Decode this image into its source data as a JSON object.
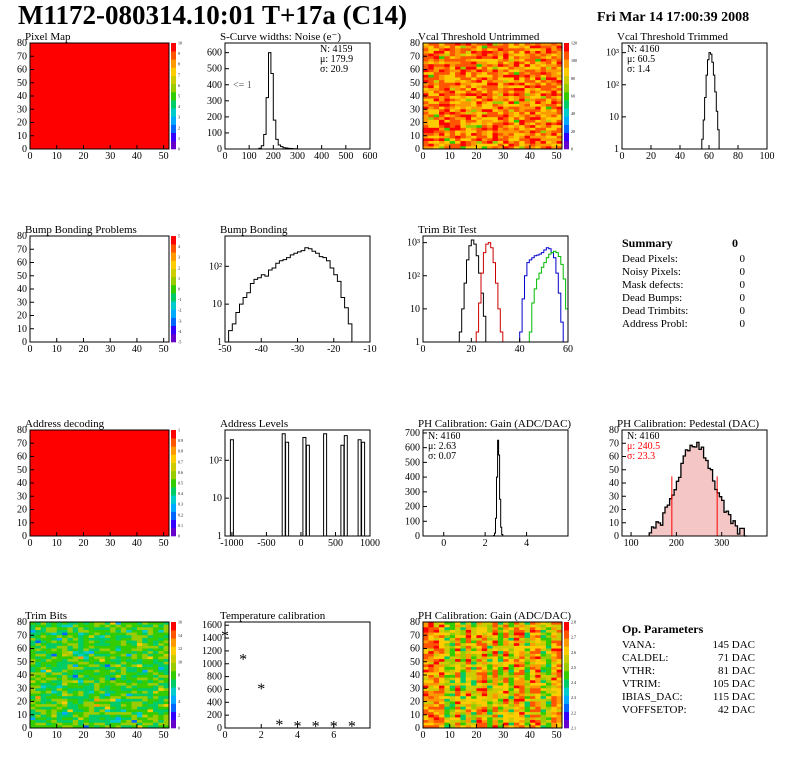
{
  "header": {
    "title": "M1172-080314.10:01 T+17a (C14)",
    "date": "Fri Mar 14 17:00:39 2008"
  },
  "chart_data": [
    {
      "id": "pixel-map",
      "type": "heatmap",
      "title": "Pixel Map",
      "xlim": [
        0,
        52
      ],
      "ylim": [
        0,
        80
      ],
      "xticks": [
        "0",
        "10",
        "20",
        "30",
        "40",
        "50"
      ],
      "yticks": [
        "0",
        "10",
        "20",
        "30",
        "40",
        "50",
        "60",
        "70",
        "80"
      ],
      "fill": "uniform-max",
      "fill_color": "#ff0000",
      "zticks": [
        "0",
        "1",
        "2",
        "3",
        "4",
        "5",
        "6",
        "7",
        "8",
        "9",
        "10"
      ]
    },
    {
      "id": "s-curve-widths",
      "type": "histogram",
      "title": "S-Curve widths: Noise (e⁻)",
      "xlim": [
        0,
        600
      ],
      "ylim": [
        0,
        660
      ],
      "xticks": [
        "0",
        "100",
        "200",
        "300",
        "400",
        "500",
        "600"
      ],
      "yticks": [
        "0",
        "100",
        "200",
        "300",
        "400",
        "500",
        "600"
      ],
      "bins": [
        [
          140,
          5
        ],
        [
          150,
          20
        ],
        [
          160,
          90
        ],
        [
          170,
          320
        ],
        [
          180,
          600
        ],
        [
          190,
          470
        ],
        [
          200,
          180
        ],
        [
          210,
          60
        ],
        [
          220,
          25
        ],
        [
          230,
          15
        ],
        [
          240,
          8
        ],
        [
          250,
          6
        ],
        [
          260,
          4
        ],
        [
          270,
          3
        ],
        [
          280,
          2
        ],
        [
          290,
          1
        ]
      ],
      "stats": {
        "N": "4159",
        "mu": "179.9",
        "sigma": "20.9"
      },
      "annotation": "<= 1"
    },
    {
      "id": "vcal-untrimmed",
      "type": "heatmap",
      "title": "Vcal Threshold Untrimmed",
      "xlim": [
        0,
        52
      ],
      "ylim": [
        0,
        80
      ],
      "xticks": [
        "0",
        "10",
        "20",
        "30",
        "40",
        "50"
      ],
      "yticks": [
        "0",
        "10",
        "20",
        "30",
        "40",
        "50",
        "60",
        "70",
        "80"
      ],
      "fill": "noisy-warm",
      "zticks": [
        "0",
        "20",
        "40",
        "60",
        "80",
        "100",
        "120"
      ]
    },
    {
      "id": "vcal-trimmed",
      "type": "histogram",
      "title": "Vcal Threshold Trimmed",
      "log": true,
      "xlim": [
        0,
        100
      ],
      "ylim_log": [
        0,
        3.3
      ],
      "xticks": [
        "0",
        "20",
        "40",
        "60",
        "80",
        "100"
      ],
      "yticks": [
        "1",
        "10",
        "10²",
        "10³"
      ],
      "bins": [
        [
          55,
          2
        ],
        [
          56,
          8
        ],
        [
          57,
          40
        ],
        [
          58,
          200
        ],
        [
          59,
          600
        ],
        [
          60,
          1000
        ],
        [
          61,
          900
        ],
        [
          62,
          500
        ],
        [
          63,
          200
        ],
        [
          64,
          60
        ],
        [
          65,
          15
        ],
        [
          66,
          4
        ]
      ],
      "stats": {
        "N": "4160",
        "mu": "60.5",
        "sigma": "1.4"
      }
    },
    {
      "id": "bump-problems",
      "type": "heatmap",
      "title": "Bump Bonding Problems",
      "xlim": [
        0,
        52
      ],
      "ylim": [
        0,
        80
      ],
      "xticks": [
        "0",
        "10",
        "20",
        "30",
        "40",
        "50"
      ],
      "yticks": [
        "0",
        "10",
        "20",
        "30",
        "40",
        "50",
        "60",
        "70",
        "80"
      ],
      "fill": "empty",
      "zticks": [
        "-5",
        "-4",
        "-3",
        "-2",
        "-1",
        "0",
        "1",
        "2",
        "3",
        "4",
        "5"
      ]
    },
    {
      "id": "bump-bonding",
      "type": "histogram",
      "title": "Bump Bonding",
      "log": true,
      "xlim": [
        -50,
        -10
      ],
      "ylim_log": [
        0,
        2.8
      ],
      "xticks": [
        "-50",
        "-40",
        "-30",
        "-20",
        "-10"
      ],
      "yticks": [
        "1",
        "10",
        "10²"
      ],
      "bins": [
        [
          -50,
          1
        ],
        [
          -49,
          2
        ],
        [
          -48,
          3
        ],
        [
          -47,
          6
        ],
        [
          -46,
          10
        ],
        [
          -45,
          15
        ],
        [
          -44,
          20
        ],
        [
          -43,
          35
        ],
        [
          -42,
          45
        ],
        [
          -41,
          50
        ],
        [
          -40,
          60
        ],
        [
          -39,
          55
        ],
        [
          -38,
          80
        ],
        [
          -37,
          90
        ],
        [
          -36,
          120
        ],
        [
          -35,
          140
        ],
        [
          -34,
          150
        ],
        [
          -33,
          170
        ],
        [
          -32,
          200
        ],
        [
          -31,
          220
        ],
        [
          -30,
          240
        ],
        [
          -29,
          260
        ],
        [
          -28,
          310
        ],
        [
          -27,
          290
        ],
        [
          -26,
          250
        ],
        [
          -25,
          220
        ],
        [
          -24,
          180
        ],
        [
          -23,
          170
        ],
        [
          -22,
          140
        ],
        [
          -21,
          90
        ],
        [
          -20,
          60
        ],
        [
          -19,
          40
        ],
        [
          -18,
          15
        ],
        [
          -17,
          8
        ],
        [
          -16,
          3
        ],
        [
          -15,
          1
        ]
      ]
    },
    {
      "id": "trim-bit-test",
      "type": "histogram",
      "title": "Trim Bit Test",
      "log": true,
      "xlim": [
        0,
        60
      ],
      "ylim_log": [
        0,
        3.2
      ],
      "xticks": [
        "0",
        "20",
        "40",
        "60"
      ],
      "yticks": [
        "1",
        "10",
        "10²",
        "10³"
      ],
      "series": [
        {
          "color": "#000000",
          "bins": [
            [
              15,
              2
            ],
            [
              16,
              10
            ],
            [
              17,
              60
            ],
            [
              18,
              300
            ],
            [
              19,
              800
            ],
            [
              20,
              1200
            ],
            [
              21,
              900
            ],
            [
              22,
              400
            ],
            [
              23,
              120
            ],
            [
              24,
              30
            ],
            [
              25,
              6
            ]
          ]
        },
        {
          "color": "#cc0000",
          "bins": [
            [
              22,
              2
            ],
            [
              23,
              15
            ],
            [
              24,
              120
            ],
            [
              25,
              500
            ],
            [
              26,
              900
            ],
            [
              27,
              1000
            ],
            [
              28,
              700
            ],
            [
              29,
              250
            ],
            [
              30,
              60
            ],
            [
              31,
              10
            ],
            [
              32,
              2
            ]
          ]
        },
        {
          "color": "#0000cc",
          "bins": [
            [
              40,
              2
            ],
            [
              41,
              20
            ],
            [
              42,
              100
            ],
            [
              43,
              250
            ],
            [
              44,
              300
            ],
            [
              45,
              350
            ],
            [
              46,
              400
            ],
            [
              47,
              420
            ],
            [
              48,
              450
            ],
            [
              49,
              500
            ],
            [
              50,
              600
            ],
            [
              51,
              700
            ],
            [
              52,
              650
            ],
            [
              53,
              500
            ],
            [
              54,
              350
            ],
            [
              55,
              120
            ],
            [
              56,
              30
            ],
            [
              57,
              4
            ]
          ]
        },
        {
          "color": "#00bb00",
          "bins": [
            [
              44,
              2
            ],
            [
              45,
              15
            ],
            [
              46,
              40
            ],
            [
              47,
              80
            ],
            [
              48,
              120
            ],
            [
              49,
              180
            ],
            [
              50,
              250
            ],
            [
              51,
              350
            ],
            [
              52,
              450
            ],
            [
              53,
              500
            ],
            [
              54,
              550
            ],
            [
              55,
              500
            ],
            [
              56,
              380
            ],
            [
              57,
              220
            ],
            [
              58,
              80
            ],
            [
              59,
              10
            ]
          ]
        }
      ]
    },
    {
      "id": "address-decoding",
      "type": "heatmap",
      "title": "Address decoding",
      "xlim": [
        0,
        52
      ],
      "ylim": [
        0,
        80
      ],
      "xticks": [
        "0",
        "10",
        "20",
        "30",
        "40",
        "50"
      ],
      "yticks": [
        "0",
        "10",
        "20",
        "30",
        "40",
        "50",
        "60",
        "70",
        "80"
      ],
      "fill": "uniform-max",
      "fill_color": "#ff0000",
      "zticks": [
        "0",
        "0.1",
        "0.2",
        "0.3",
        "0.4",
        "0.5",
        "0.6",
        "0.7",
        "0.8",
        "0.9",
        "1"
      ]
    },
    {
      "id": "address-levels",
      "type": "histogram",
      "title": "Address Levels",
      "log": true,
      "xlim": [
        -1100,
        1000
      ],
      "ylim_log": [
        0,
        2.8
      ],
      "xticks": [
        "-1000",
        "-500",
        "0",
        "500",
        "1000"
      ],
      "yticks": [
        "1",
        "10",
        "10²"
      ],
      "spikes": [
        [
          -1000,
          350
        ],
        [
          -250,
          500
        ],
        [
          -200,
          300
        ],
        [
          50,
          400
        ],
        [
          100,
          250
        ],
        [
          350,
          500
        ],
        [
          600,
          250
        ],
        [
          650,
          450
        ],
        [
          850,
          350
        ],
        [
          900,
          300
        ]
      ]
    },
    {
      "id": "ph-gain",
      "type": "histogram",
      "title": "PH Calibration: Gain (ADC/DAC)",
      "xlim": [
        -1,
        6
      ],
      "ylim": [
        0,
        720
      ],
      "xticks": [
        "0",
        "2",
        "4"
      ],
      "yticks": [
        "0",
        "100",
        "200",
        "300",
        "400",
        "500",
        "600",
        "700"
      ],
      "bins": [
        [
          2.4,
          3
        ],
        [
          2.45,
          20
        ],
        [
          2.5,
          120
        ],
        [
          2.55,
          400
        ],
        [
          2.6,
          650
        ],
        [
          2.65,
          550
        ],
        [
          2.7,
          250
        ],
        [
          2.75,
          60
        ],
        [
          2.8,
          10
        ]
      ],
      "stats": {
        "N": "4160",
        "mu": "2.63",
        "sigma": "0.07"
      }
    },
    {
      "id": "ph-pedestal",
      "type": "histogram",
      "title": "PH Calibration: Pedestal (DAC)",
      "xlim": [
        80,
        400
      ],
      "ylim": [
        0,
        80
      ],
      "xticks": [
        "100",
        "200",
        "300"
      ],
      "yticks": [
        "0",
        "10",
        "20",
        "30",
        "40",
        "50",
        "60",
        "70",
        "80"
      ],
      "stats": {
        "N": "4160",
        "mu": "240.5",
        "sigma": "23.3"
      },
      "fit_color": "#ff0000"
    },
    {
      "id": "trim-bits",
      "type": "heatmap",
      "title": "Trim Bits",
      "xlim": [
        0,
        52
      ],
      "ylim": [
        0,
        80
      ],
      "xticks": [
        "0",
        "10",
        "20",
        "30",
        "40",
        "50"
      ],
      "yticks": [
        "0",
        "10",
        "20",
        "30",
        "40",
        "50",
        "60",
        "70",
        "80"
      ],
      "fill": "noisy-cool",
      "zticks": [
        "0",
        "2",
        "4",
        "6",
        "8",
        "10",
        "12",
        "14",
        "16"
      ]
    },
    {
      "id": "temperature-calibration",
      "type": "scatter",
      "title": "Temperature calibration",
      "xlim": [
        0,
        8
      ],
      "ylim": [
        0,
        1650
      ],
      "xticks": [
        "0",
        "2",
        "4",
        "6"
      ],
      "yticks": [
        "0",
        "200",
        "400",
        "600",
        "800",
        "1000",
        "1200",
        "1400",
        "1600"
      ],
      "points": [
        [
          0,
          1450
        ],
        [
          1,
          1080
        ],
        [
          2,
          620
        ],
        [
          3,
          60
        ],
        [
          4,
          40
        ],
        [
          5,
          40
        ],
        [
          6,
          40
        ],
        [
          7,
          40
        ]
      ]
    },
    {
      "id": "ph-gain-map",
      "type": "heatmap",
      "title": "PH Calibration: Gain (ADC/DAC)",
      "xlim": [
        0,
        52
      ],
      "ylim": [
        0,
        80
      ],
      "xticks": [
        "0",
        "10",
        "20",
        "30",
        "40",
        "50"
      ],
      "yticks": [
        "0",
        "10",
        "20",
        "30",
        "40",
        "50",
        "60",
        "70",
        "80"
      ],
      "fill": "noisy-columns",
      "zticks": [
        "2.1",
        "2.2",
        "2.3",
        "2.4",
        "2.5",
        "2.6",
        "2.7",
        "2.8"
      ]
    }
  ],
  "summary": {
    "title": "Summary",
    "value": "0",
    "rows": [
      {
        "label": "Dead Pixels:",
        "value": "0"
      },
      {
        "label": "Noisy Pixels:",
        "value": "0"
      },
      {
        "label": "Mask defects:",
        "value": "0"
      },
      {
        "label": "Dead Bumps:",
        "value": "0"
      },
      {
        "label": "Dead Trimbits:",
        "value": "0"
      },
      {
        "label": "Address Probl:",
        "value": "0"
      }
    ]
  },
  "op_parameters": {
    "title": "Op. Parameters",
    "rows": [
      {
        "label": "VANA:",
        "value": "145 DAC"
      },
      {
        "label": "CALDEL:",
        "value": "71 DAC"
      },
      {
        "label": "VTHR:",
        "value": "81 DAC"
      },
      {
        "label": "VTRIM:",
        "value": "105 DAC"
      },
      {
        "label": "IBIAS_DAC:",
        "value": "115 DAC"
      },
      {
        "label": "VOFFSETOP:",
        "value": "42 DAC"
      }
    ]
  }
}
